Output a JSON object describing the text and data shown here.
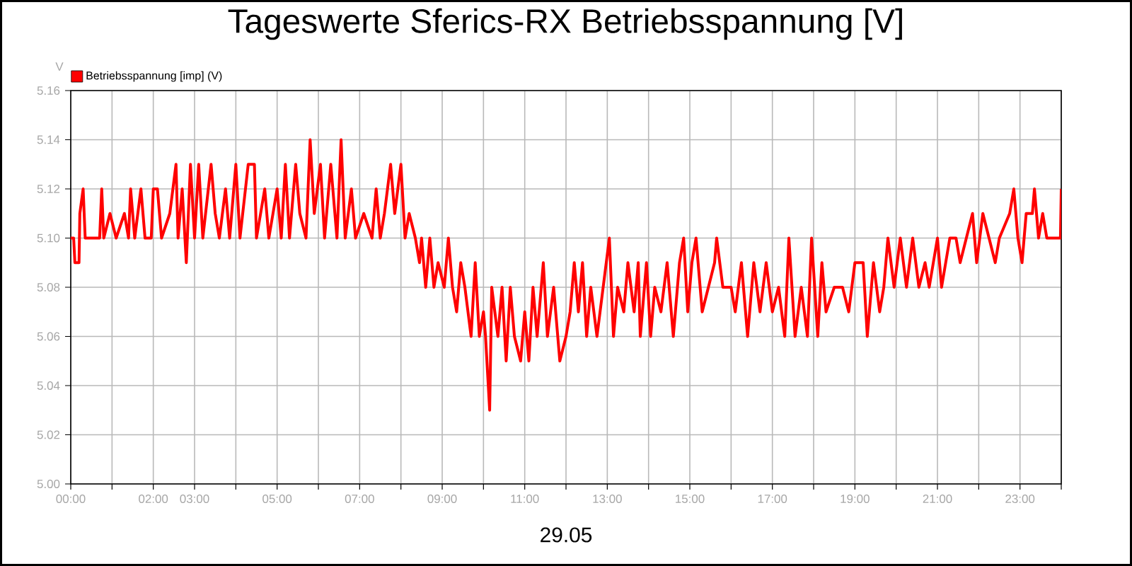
{
  "chart_data": {
    "type": "line",
    "title": "Tageswerte Sferics-RX Betriebsspannung [V]",
    "xlabel": "29.05",
    "ylabel": "V",
    "xlim": [
      0,
      24
    ],
    "ylim": [
      5.0,
      5.16
    ],
    "xticks": [
      {
        "value": 0,
        "label": "00:00"
      },
      {
        "value": 1,
        "label": null
      },
      {
        "value": 2,
        "label": "02:00"
      },
      {
        "value": 3,
        "label": "03:00"
      },
      {
        "value": 4,
        "label": null
      },
      {
        "value": 5,
        "label": "05:00"
      },
      {
        "value": 6,
        "label": null
      },
      {
        "value": 7,
        "label": "07:00"
      },
      {
        "value": 8,
        "label": null
      },
      {
        "value": 9,
        "label": "09:00"
      },
      {
        "value": 10,
        "label": null
      },
      {
        "value": 11,
        "label": "11:00"
      },
      {
        "value": 12,
        "label": null
      },
      {
        "value": 13,
        "label": "13:00"
      },
      {
        "value": 14,
        "label": null
      },
      {
        "value": 15,
        "label": "15:00"
      },
      {
        "value": 16,
        "label": null
      },
      {
        "value": 17,
        "label": "17:00"
      },
      {
        "value": 18,
        "label": null
      },
      {
        "value": 19,
        "label": "19:00"
      },
      {
        "value": 20,
        "label": null
      },
      {
        "value": 21,
        "label": "21:00"
      },
      {
        "value": 22,
        "label": null
      },
      {
        "value": 23,
        "label": "23:00"
      },
      {
        "value": 24,
        "label": null
      }
    ],
    "yticks": [
      {
        "value": 5.0,
        "label": "5.00"
      },
      {
        "value": 5.02,
        "label": "5.02"
      },
      {
        "value": 5.04,
        "label": "5.04"
      },
      {
        "value": 5.06,
        "label": "5.06"
      },
      {
        "value": 5.08,
        "label": "5.08"
      },
      {
        "value": 5.1,
        "label": "5.10"
      },
      {
        "value": 5.12,
        "label": "5.12"
      },
      {
        "value": 5.14,
        "label": "5.14"
      },
      {
        "value": 5.16,
        "label": "5.16"
      }
    ],
    "grid": true,
    "legend": "top left",
    "series": [
      {
        "name": "Betriebsspannung [imp] (V)",
        "color": "#ff0000",
        "x": [
          0.0,
          0.07,
          0.1,
          0.2,
          0.22,
          0.3,
          0.35,
          0.7,
          0.75,
          0.8,
          0.95,
          1.1,
          1.3,
          1.4,
          1.45,
          1.55,
          1.7,
          1.8,
          1.95,
          2.0,
          2.1,
          2.2,
          2.4,
          2.55,
          2.6,
          2.7,
          2.8,
          2.9,
          3.0,
          3.1,
          3.2,
          3.4,
          3.5,
          3.6,
          3.75,
          3.85,
          4.0,
          4.1,
          4.3,
          4.45,
          4.5,
          4.7,
          4.8,
          5.0,
          5.1,
          5.2,
          5.3,
          5.45,
          5.55,
          5.7,
          5.8,
          5.9,
          6.05,
          6.15,
          6.3,
          6.45,
          6.55,
          6.65,
          6.8,
          6.9,
          7.1,
          7.3,
          7.4,
          7.5,
          7.6,
          7.75,
          7.85,
          8.0,
          8.1,
          8.2,
          8.35,
          8.45,
          8.5,
          8.6,
          8.7,
          8.8,
          8.9,
          9.05,
          9.15,
          9.25,
          9.35,
          9.45,
          9.55,
          9.7,
          9.8,
          9.9,
          10.0,
          10.05,
          10.15,
          10.2,
          10.35,
          10.45,
          10.55,
          10.65,
          10.75,
          10.9,
          11.0,
          11.1,
          11.2,
          11.3,
          11.45,
          11.55,
          11.7,
          11.85,
          12.0,
          12.1,
          12.2,
          12.3,
          12.4,
          12.5,
          12.6,
          12.75,
          12.9,
          13.05,
          13.15,
          13.25,
          13.4,
          13.5,
          13.65,
          13.75,
          13.8,
          13.95,
          14.05,
          14.15,
          14.3,
          14.45,
          14.6,
          14.75,
          14.85,
          14.95,
          15.05,
          15.15,
          15.3,
          15.45,
          15.6,
          15.65,
          15.8,
          16.0,
          16.1,
          16.25,
          16.4,
          16.55,
          16.7,
          16.85,
          17.0,
          17.15,
          17.3,
          17.4,
          17.55,
          17.7,
          17.85,
          17.95,
          18.1,
          18.2,
          18.3,
          18.5,
          18.7,
          18.85,
          19.0,
          19.2,
          19.3,
          19.45,
          19.6,
          19.7,
          19.8,
          19.95,
          20.1,
          20.25,
          20.4,
          20.55,
          20.7,
          20.8,
          21.0,
          21.1,
          21.3,
          21.45,
          21.55,
          21.7,
          21.85,
          21.95,
          22.1,
          22.25,
          22.4,
          22.5,
          22.75,
          22.85,
          22.95,
          23.05,
          23.15,
          23.3,
          23.35,
          23.45,
          23.55,
          23.65,
          23.98,
          24.0
        ],
        "values": [
          5.1,
          5.1,
          5.09,
          5.09,
          5.11,
          5.12,
          5.1,
          5.1,
          5.12,
          5.1,
          5.11,
          5.1,
          5.11,
          5.1,
          5.12,
          5.1,
          5.12,
          5.1,
          5.1,
          5.12,
          5.12,
          5.1,
          5.11,
          5.13,
          5.1,
          5.12,
          5.09,
          5.13,
          5.1,
          5.13,
          5.1,
          5.13,
          5.11,
          5.1,
          5.12,
          5.1,
          5.13,
          5.1,
          5.13,
          5.13,
          5.1,
          5.12,
          5.1,
          5.12,
          5.1,
          5.13,
          5.1,
          5.13,
          5.11,
          5.1,
          5.14,
          5.11,
          5.13,
          5.1,
          5.13,
          5.1,
          5.14,
          5.1,
          5.12,
          5.1,
          5.11,
          5.1,
          5.12,
          5.1,
          5.11,
          5.13,
          5.11,
          5.13,
          5.1,
          5.11,
          5.1,
          5.09,
          5.1,
          5.08,
          5.1,
          5.08,
          5.09,
          5.08,
          5.1,
          5.08,
          5.07,
          5.09,
          5.08,
          5.06,
          5.09,
          5.06,
          5.07,
          5.06,
          5.03,
          5.08,
          5.06,
          5.08,
          5.05,
          5.08,
          5.06,
          5.05,
          5.07,
          5.05,
          5.08,
          5.06,
          5.09,
          5.06,
          5.08,
          5.05,
          5.06,
          5.07,
          5.09,
          5.07,
          5.09,
          5.06,
          5.08,
          5.06,
          5.08,
          5.1,
          5.06,
          5.08,
          5.07,
          5.09,
          5.07,
          5.09,
          5.06,
          5.09,
          5.06,
          5.08,
          5.07,
          5.09,
          5.06,
          5.09,
          5.1,
          5.07,
          5.09,
          5.1,
          5.07,
          5.08,
          5.09,
          5.1,
          5.08,
          5.08,
          5.07,
          5.09,
          5.06,
          5.09,
          5.07,
          5.09,
          5.07,
          5.08,
          5.06,
          5.1,
          5.06,
          5.08,
          5.06,
          5.1,
          5.06,
          5.09,
          5.07,
          5.08,
          5.08,
          5.07,
          5.09,
          5.09,
          5.06,
          5.09,
          5.07,
          5.08,
          5.1,
          5.08,
          5.1,
          5.08,
          5.1,
          5.08,
          5.09,
          5.08,
          5.1,
          5.08,
          5.1,
          5.1,
          5.09,
          5.1,
          5.11,
          5.09,
          5.11,
          5.1,
          5.09,
          5.1,
          5.11,
          5.12,
          5.1,
          5.09,
          5.11,
          5.11,
          5.12,
          5.1,
          5.11,
          5.1,
          5.1,
          5.12
        ]
      }
    ]
  }
}
